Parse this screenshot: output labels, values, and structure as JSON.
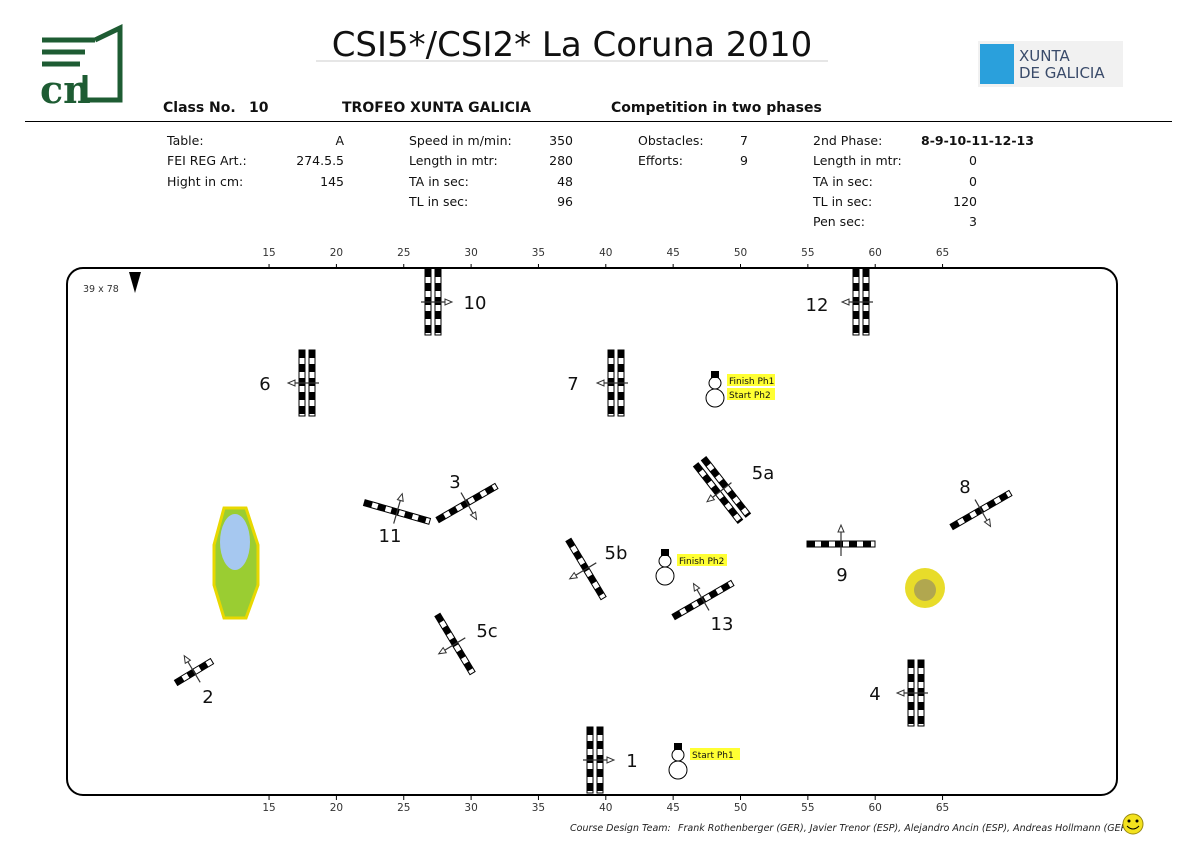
{
  "header": {
    "logo": "cn",
    "title": "CSI5*/CSI2* La Coruna 2010",
    "sponsor": [
      "XUNTA",
      "DE GALICIA"
    ],
    "class_label": "Class No.",
    "class_number": "10",
    "trophy": "TROFEO XUNTA GALICIA",
    "competition": "Competition in two phases"
  },
  "info": {
    "columns": [
      [
        [
          "Table:",
          "A"
        ],
        [
          "FEI REG Art.:",
          "274.5.5"
        ],
        [
          "Hight in cm:",
          "145"
        ]
      ],
      [
        [
          "Speed in m/min:",
          "350"
        ],
        [
          "Length in mtr:",
          "280"
        ],
        [
          "TA in sec:",
          "48"
        ],
        [
          "TL in sec:",
          "96"
        ]
      ],
      [
        [
          "Obstacles:",
          "7"
        ],
        [
          "Efforts:",
          "9"
        ]
      ],
      [
        [
          "2nd Phase:",
          "8-9-10-11-12-13"
        ],
        [
          "Length in mtr:",
          "0"
        ],
        [
          "TA in sec:",
          "0"
        ],
        [
          "TL in sec:",
          "120"
        ],
        [
          "Pen sec:",
          "3"
        ]
      ]
    ]
  },
  "ruler": {
    "ticks": [
      15,
      20,
      25,
      30,
      35,
      40,
      45,
      50,
      55,
      60,
      65
    ]
  },
  "arena": {
    "size": "39 x 78"
  },
  "obstacles": [
    "10",
    "12",
    "6",
    "7",
    "5a",
    "3",
    "11",
    "8",
    "5b",
    "9",
    "13",
    "5c",
    "2",
    "4",
    "1"
  ],
  "markers": [
    [
      "Finish Ph1",
      "Start Ph2"
    ],
    [
      "Finish Ph2"
    ],
    [
      "Start Ph1"
    ]
  ],
  "footer": {
    "label": "Course Design Team:",
    "names": "Frank Rothenberger (GER), Javier Trenor (ESP), Alejandro Ancin (ESP), Andreas Hollmann (GER)"
  }
}
